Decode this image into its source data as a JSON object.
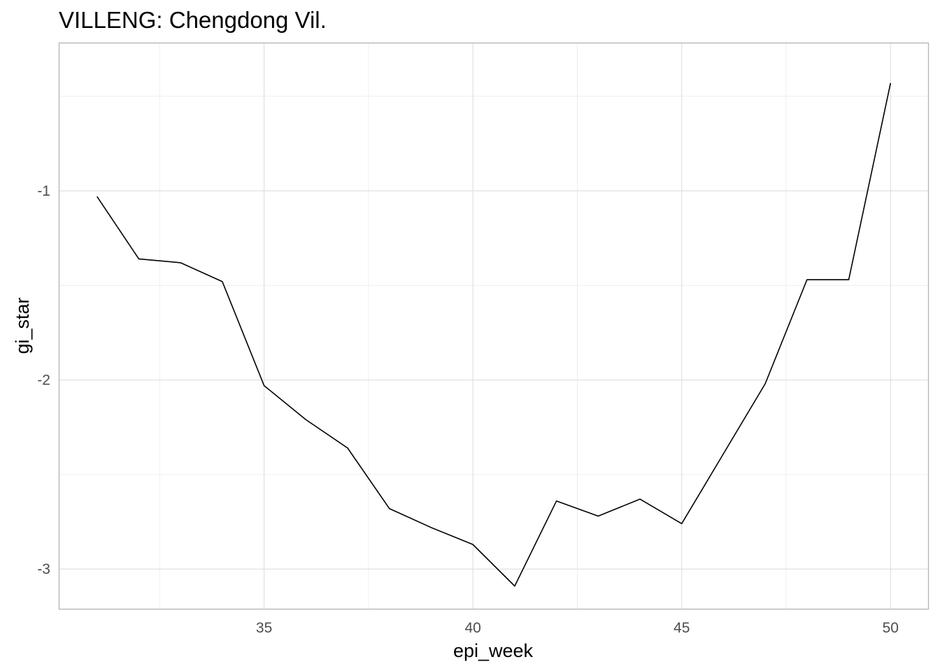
{
  "chart_data": {
    "type": "line",
    "title": "VILLENG: Chengdong Vil.",
    "xlabel": "epi_week",
    "ylabel": "gi_star",
    "x_ticks": [
      35,
      40,
      45,
      50
    ],
    "y_ticks": [
      -1,
      -2,
      -3
    ],
    "x_tick_labels": [
      "35",
      "40",
      "45",
      "50"
    ],
    "y_tick_labels": [
      "-1",
      "-2",
      "-3"
    ],
    "xlim": [
      30.1,
      50.9
    ],
    "ylim": [
      -3.21,
      -0.22
    ],
    "grid": true,
    "line_color": "#000000",
    "series": [
      {
        "x": [
          31,
          32,
          33,
          34,
          35,
          36,
          37,
          38,
          39,
          40,
          41,
          42,
          43,
          44,
          45,
          46,
          47,
          48,
          49,
          50
        ],
        "y": [
          -1.03,
          -1.36,
          -1.38,
          -1.48,
          -2.03,
          -2.21,
          -2.36,
          -2.68,
          -2.78,
          -2.87,
          -3.09,
          -2.64,
          -2.72,
          -2.63,
          -2.76,
          -2.39,
          -2.02,
          -1.47,
          -1.47,
          -0.43
        ]
      }
    ]
  }
}
